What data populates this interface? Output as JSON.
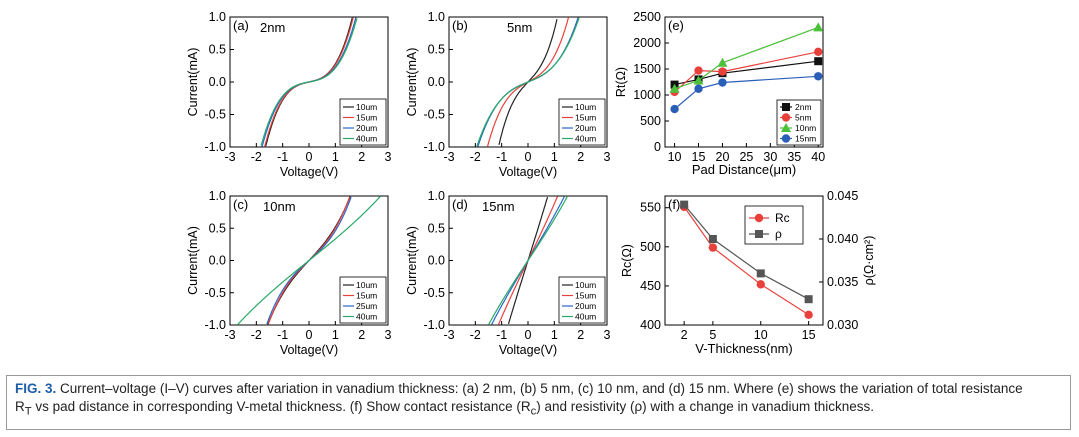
{
  "chart_data": [
    {
      "id": "a",
      "type": "line",
      "panel_label": "(a)",
      "title": "2nm",
      "xlabel": "Voltage(V)",
      "ylabel": "Current(mA)",
      "xlim": [
        -3,
        3
      ],
      "ylim": [
        -1.0,
        1.0
      ],
      "xticks": [
        "-3",
        "-2",
        "-1",
        "0",
        "1",
        "2",
        "3"
      ],
      "yticks": [
        "-1.0",
        "-0.5",
        "0.0",
        "0.5",
        "1.0"
      ],
      "legend": [
        "10um",
        "15um",
        "20um",
        "40um"
      ],
      "series": [
        {
          "name": "10um",
          "color": "#222222",
          "k": 0.09,
          "c": 0.19
        },
        {
          "name": "15um",
          "color": "#e8413c",
          "k": 0.088,
          "c": 0.178
        },
        {
          "name": "20um",
          "color": "#2a66c8",
          "k": 0.082,
          "c": 0.15
        },
        {
          "name": "40um",
          "color": "#2aa86a",
          "k": 0.075,
          "c": 0.14
        }
      ]
    },
    {
      "id": "b",
      "type": "line",
      "panel_label": "(b)",
      "title": "5nm",
      "xlabel": "Voltage(V)",
      "ylabel": "Current(mA)",
      "xlim": [
        -3,
        3
      ],
      "ylim": [
        -1.0,
        1.0
      ],
      "xticks": [
        "-3",
        "-2",
        "-1",
        "0",
        "1",
        "2",
        "3"
      ],
      "yticks": [
        "-1.0",
        "-0.5",
        "0.0",
        "0.5",
        "1.0"
      ],
      "legend": [
        "10um",
        "15um",
        "20um",
        "40um"
      ],
      "series": [
        {
          "name": "10um",
          "color": "#222222",
          "k": 0.43,
          "c": 0.37
        },
        {
          "name": "15um",
          "color": "#e8413c",
          "k": 0.22,
          "c": 0.18
        },
        {
          "name": "20um",
          "color": "#2a66c8",
          "k": 0.16,
          "c": 0.1
        },
        {
          "name": "40um",
          "color": "#2aa86a",
          "k": 0.17,
          "c": 0.09
        }
      ]
    },
    {
      "id": "c",
      "type": "line",
      "panel_label": "(c)",
      "title": "10nm",
      "xlabel": "Voltage(V)",
      "ylabel": "Current(mA)",
      "xlim": [
        -3,
        3
      ],
      "ylim": [
        -1.0,
        1.0
      ],
      "xticks": [
        "-3",
        "-2",
        "-1",
        "0",
        "1",
        "2",
        "3"
      ],
      "yticks": [
        "-1.0",
        "-0.5",
        "0.0",
        "0.5",
        "1.0"
      ],
      "legend": [
        "10um",
        "15um",
        "25um",
        "40um"
      ],
      "series": [
        {
          "name": "10um",
          "color": "#222222",
          "k": 0.44,
          "c": 0.08
        },
        {
          "name": "15um",
          "color": "#e8413c",
          "k": 0.4,
          "c": 0.1
        },
        {
          "name": "25um",
          "color": "#2a66c8",
          "k": 0.36,
          "c": 0.1
        },
        {
          "name": "40um",
          "color": "#2aa86a",
          "k": 0.33,
          "c": 0.005
        }
      ]
    },
    {
      "id": "d",
      "type": "line",
      "panel_label": "(d)",
      "title": "15nm",
      "xlabel": "Voltage(V)",
      "ylabel": "Current(mA)",
      "xlim": [
        -3,
        3
      ],
      "ylim": [
        -1.0,
        1.0
      ],
      "xticks": [
        "-3",
        "-2",
        "-1",
        "0",
        "1",
        "2",
        "3"
      ],
      "yticks": [
        "-1.0",
        "-0.5",
        "0.0",
        "0.5",
        "1.0"
      ],
      "legend": [
        "10um",
        "15um",
        "20um",
        "40um"
      ],
      "series": [
        {
          "name": "10um",
          "color": "#222222",
          "k": 1.3,
          "c": 0.05
        },
        {
          "name": "15um",
          "color": "#e8413c",
          "k": 0.85,
          "c": 0.03
        },
        {
          "name": "20um",
          "color": "#2a66c8",
          "k": 0.68,
          "c": 0.02
        },
        {
          "name": "40um",
          "color": "#2aa86a",
          "k": 0.62,
          "c": 0.02
        }
      ]
    },
    {
      "id": "e",
      "type": "line",
      "panel_label": "(e)",
      "xlabel": "Pad Distance(μm)",
      "ylabel": "Rt(Ω)",
      "xlim": [
        8,
        41
      ],
      "ylim": [
        0,
        2500
      ],
      "xticks": [
        10,
        15,
        20,
        25,
        30,
        35,
        40
      ],
      "yticks": [
        0,
        500,
        1000,
        1500,
        2000,
        2500
      ],
      "x": [
        10,
        15,
        20,
        40
      ],
      "series": [
        {
          "name": "2nm",
          "color": "#111111",
          "marker": "square",
          "values": [
            1200,
            1300,
            1420,
            1650
          ]
        },
        {
          "name": "5nm",
          "color": "#e8413c",
          "marker": "circle",
          "values": [
            1060,
            1470,
            1450,
            1830
          ]
        },
        {
          "name": "10nm",
          "color": "#4cc03a",
          "marker": "triangle",
          "values": [
            1120,
            1280,
            1620,
            2300
          ]
        },
        {
          "name": "15nm",
          "color": "#2a5fb8",
          "marker": "circle",
          "values": [
            730,
            1120,
            1240,
            1360
          ]
        }
      ]
    },
    {
      "id": "f",
      "type": "line",
      "panel_label": "(f)",
      "xlabel": "V-Thickness(nm)",
      "ylabel": "Rc(Ω)",
      "ylabel_right": "ρ(Ω·cm²)",
      "xlim": [
        0,
        16.5
      ],
      "ylim": [
        400,
        565
      ],
      "ylim_right": [
        0.03,
        0.045
      ],
      "xticks": [
        2,
        5,
        10,
        15
      ],
      "yticks": [
        400,
        450,
        500,
        550
      ],
      "yticks_right": [
        "0.030",
        "0.035",
        "0.040",
        "0.045"
      ],
      "x": [
        2,
        5,
        10,
        15
      ],
      "series": [
        {
          "name": "Rc",
          "color": "#e8413c",
          "marker": "circle",
          "axis": "left",
          "values": [
            551,
            499,
            452,
            413
          ]
        },
        {
          "name": "ρ",
          "color": "#555555",
          "marker": "square",
          "axis": "right",
          "values": [
            0.044,
            0.04,
            0.036,
            0.033
          ]
        }
      ]
    }
  ],
  "caption": {
    "label": "FIG. 3.",
    "line1": " Current–voltage (I–V) curves after variation in vanadium thickness: (a) 2 nm, (b) 5 nm, (c) 10 nm, and (d) 15 nm. Where (e) shows the variation of total resistance",
    "line2_a": "R",
    "line2_sub": "T",
    "line2_b": " vs pad distance in corresponding V-metal thickness. (f) Show contact resistance (R",
    "line2_sub2": "c",
    "line2_c": ") and resistivity (ρ) with a change in vanadium thickness."
  }
}
